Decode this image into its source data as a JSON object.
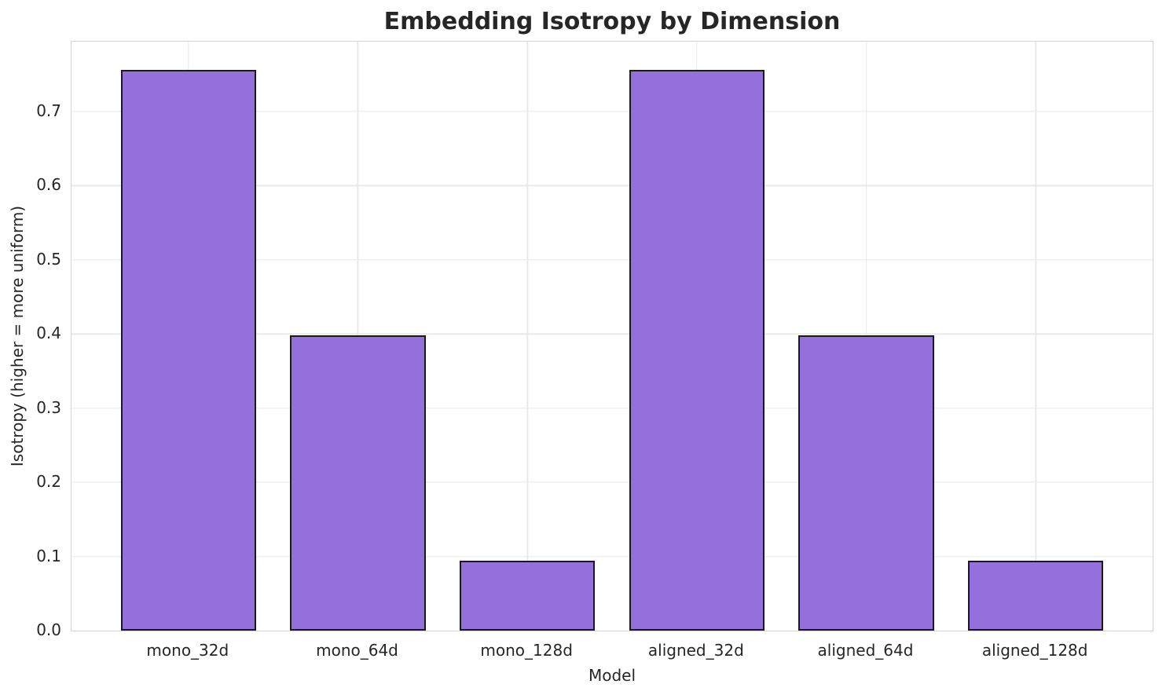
{
  "chart_data": {
    "type": "bar",
    "title": "Embedding Isotropy by Dimension",
    "xlabel": "Model",
    "ylabel": "Isotropy (higher = more uniform)",
    "categories": [
      "mono_32d",
      "mono_64d",
      "mono_128d",
      "aligned_32d",
      "aligned_64d",
      "aligned_128d"
    ],
    "values": [
      0.756,
      0.398,
      0.094,
      0.756,
      0.398,
      0.094
    ],
    "yticks": [
      0.0,
      0.1,
      0.2,
      0.3,
      0.4,
      0.5,
      0.6,
      0.7
    ],
    "ytick_labels": [
      "0.0",
      "0.1",
      "0.2",
      "0.3",
      "0.4",
      "0.5",
      "0.6",
      "0.7"
    ],
    "ylim": [
      0,
      0.794
    ],
    "xlim": [
      -0.69,
      5.69
    ],
    "bar_width": 0.8,
    "grid": true,
    "legend": false,
    "bar_color": "#9370DB",
    "bar_edge_color": "#1a1a1a",
    "grid_color": "#e9e9e9",
    "text_color": "#262626"
  }
}
